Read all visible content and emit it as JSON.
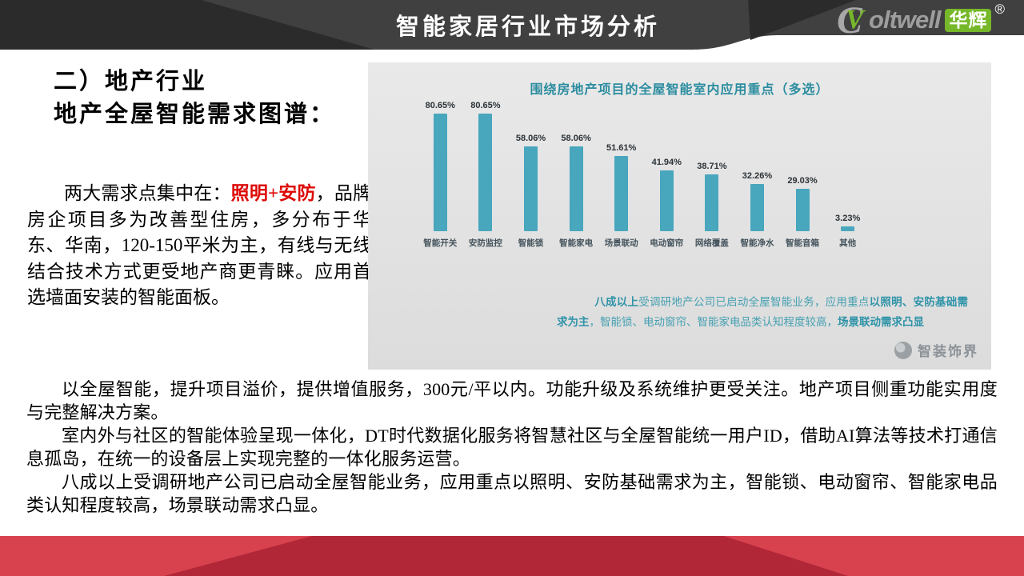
{
  "header": {
    "title": "智能家居行业市场分析",
    "logo": {
      "mark_letter_c": "C",
      "mark_letter_v": "V",
      "wordmark": "oltwell",
      "badge": "华辉",
      "registered": "®"
    }
  },
  "left": {
    "heading_line1": "二）地产行业",
    "heading_line2": "地产全屋智能需求图谱：",
    "para_lead": "两大需求点集中在：",
    "para_highlight": "照明+安防",
    "para_rest": "，品牌房企项目多为改善型住房，多分布于华东、华南，120-150平米为主，有线与无线结合技术方式更受地产商更青睐。应用首选墙面安装的智能面板。"
  },
  "chart_data": {
    "type": "bar",
    "title": "围绕房地产项目的全屋智能室内应用重点（多选）",
    "categories": [
      "智能开关",
      "安防监控",
      "智能锁",
      "智能家电",
      "场景联动",
      "电动窗帘",
      "网络覆盖",
      "智能净水",
      "智能音箱",
      "其他"
    ],
    "values": [
      80.65,
      80.65,
      58.06,
      58.06,
      51.61,
      41.94,
      38.71,
      32.26,
      29.03,
      3.23
    ],
    "value_labels": [
      "80.65%",
      "80.65%",
      "58.06%",
      "58.06%",
      "51.61%",
      "41.94%",
      "38.71%",
      "32.26%",
      "29.03%",
      "3.23%"
    ],
    "xlabel": "",
    "ylabel": "",
    "ylim": [
      0,
      90
    ],
    "grid": false,
    "legend": "none",
    "bar_color": "#48a6bd",
    "annotation_segments": [
      {
        "text": "八成以上",
        "bold": true
      },
      {
        "text": "受调研地产公司已启动全屋智能业务，应用重点",
        "bold": false
      },
      {
        "text": "以照明、安防基础需求为主",
        "bold": true
      },
      {
        "text": "，智能锁、电动窗帘、智能家电品类认知程度较高，",
        "bold": false
      },
      {
        "text": "场景联动需求凸显",
        "bold": true
      }
    ],
    "watermark": "智装饰界"
  },
  "bottom": {
    "paragraphs": [
      "以全屋智能，提升项目溢价，提供增值服务，300元/平以内。功能升级及系统维护更受关注。地产项目侧重功能实用度与完整解决方案。",
      "室内外与社区的智能体验呈现一体化，DT时代数据化服务将智慧社区与全屋智能统一用户ID，借助AI算法等技术打通信息孤岛，在统一的设备层上实现完整的一体化服务运营。",
      "八成以上受调研地产公司已启动全屋智能业务，应用重点以照明、安防基础需求为主，智能锁、电动窗帘、智能家电品类认知程度较高，场景联动需求凸显。"
    ]
  },
  "colors": {
    "header_band": "#404040",
    "header_dark": "#2b2b2b",
    "logo_green": "#76b829",
    "logo_gray": "#9d9d9d",
    "highlight_red": "#dd0806",
    "bar_teal": "#48a6bd",
    "chart_title_teal": "#2c8da0",
    "annotation_teal": "#45a0b1",
    "footer_light_red": "#d8424f",
    "footer_dark_red": "#b22737"
  }
}
